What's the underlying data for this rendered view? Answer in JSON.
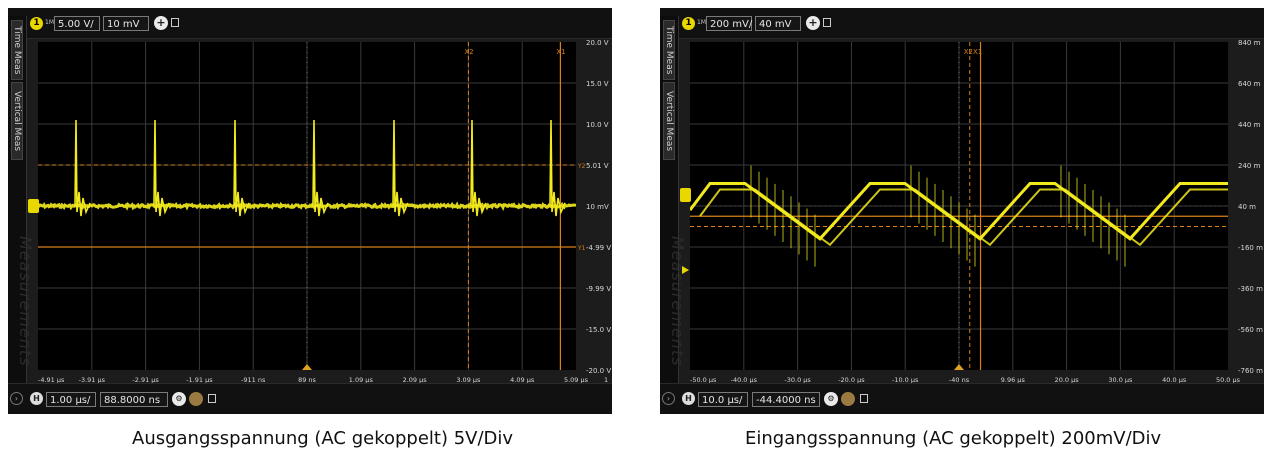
{
  "left": {
    "channel_number": "1",
    "volts_per_div": "5.00 V/",
    "offset": "10 mV",
    "time_per_div": "1.00 µs/",
    "time_position": "88.8000 ns",
    "tab_time_meas": "Time Meas",
    "tab_vertical_meas": "Vertical Meas",
    "watermark": "Measurements",
    "cursor_x1": "X1",
    "cursor_x2": "X2",
    "cursor_y1": "Y1",
    "cursor_y2": "Y2",
    "y_ticks": [
      "20.0 V",
      "15.0 V",
      "10.0 V",
      "5.01 V",
      "10 mV",
      "-4.99 V",
      "-9.99 V",
      "-15.0 V",
      "-20.0 V"
    ],
    "x_ticks": [
      "-4.91 µs",
      "-3.91 µs",
      "-2.91 µs",
      "-1.91 µs",
      "-911 ns",
      "89 ns",
      "1.09 µs",
      "2.09 µs",
      "3.09 µs",
      "4.09 µs",
      "5.09 µs"
    ],
    "x_tick_trailing": "1",
    "caption": "Ausgangsspannung (AC gekoppelt) 5V/Div"
  },
  "right": {
    "channel_number": "1",
    "volts_per_div": "200 mV/",
    "offset": "40 mV",
    "time_per_div": "10.0 µs/",
    "time_position": "-44.4000 ns",
    "tab_time_meas": "Time Meas",
    "tab_vertical_meas": "Vertical Meas",
    "watermark": "Measurements",
    "cursor_x2x1": "X2X1",
    "y_ticks": [
      "840 m",
      "640 m",
      "440 m",
      "240 m",
      "40 m",
      "-160 m",
      "-360 m",
      "-560 m",
      "-760 m"
    ],
    "x_ticks": [
      "-50.0 µs",
      "-40.0 µs",
      "-30.0 µs",
      "-20.0 µs",
      "-10.0 µs",
      "-40 ns",
      "9.96 µs",
      "20.0 µs",
      "30.0 µs",
      "40.0 µs",
      "50.0 µs"
    ],
    "caption": "Eingangsspannung (AC gekoppelt) 200mV/Div"
  },
  "colors": {
    "trace": "#f2ea1c",
    "cursor": "#d9801a",
    "grid": "#3a3a3a",
    "background": "#000000"
  },
  "icons": [
    "channel-1-badge",
    "add-channel-icon",
    "h-timebase-badge",
    "settings-icon",
    "expand-icon"
  ]
}
